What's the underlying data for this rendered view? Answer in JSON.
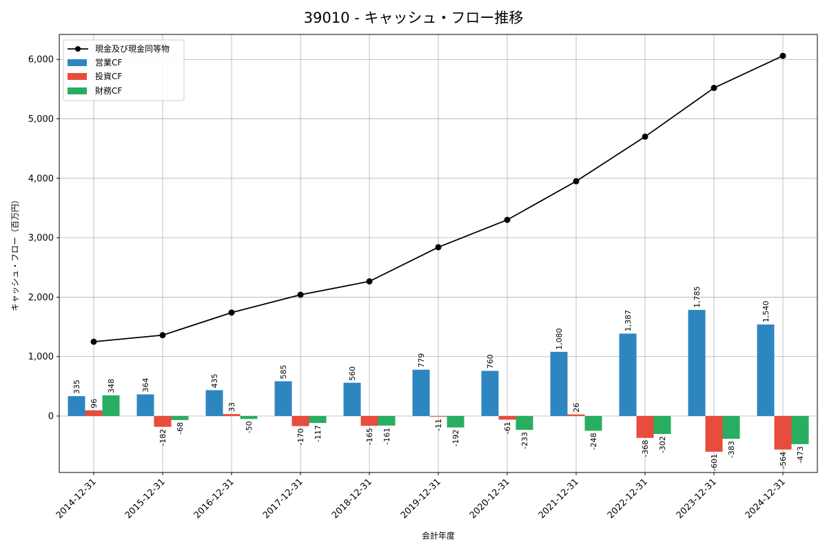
{
  "chart_data": {
    "type": "bar",
    "title": "39010 - キャッシュ・フロー推移",
    "xlabel": "会計年度",
    "ylabel": "キャッシュ・フロー（百万円）",
    "ylim": [
      -950,
      6420
    ],
    "yticks": [
      0,
      1000,
      2000,
      3000,
      4000,
      5000,
      6000
    ],
    "ytick_labels": [
      "0",
      "1,000",
      "2,000",
      "3,000",
      "4,000",
      "5,000",
      "6,000"
    ],
    "grid": true,
    "legend_position": "top-left",
    "categories": [
      "2014-12-31",
      "2015-12-31",
      "2016-12-31",
      "2017-12-31",
      "2018-12-31",
      "2019-12-31",
      "2020-12-31",
      "2021-12-31",
      "2022-12-31",
      "2023-12-31",
      "2024-12-31"
    ],
    "series": [
      {
        "name": "営業CF",
        "kind": "bar",
        "color": "#2e86c1",
        "values": [
          335,
          364,
          435,
          585,
          560,
          779,
          760,
          1080,
          1387,
          1785,
          1540
        ],
        "labels": [
          "335",
          "364",
          "435",
          "585",
          "560",
          "779",
          "760",
          "1,080",
          "1,387",
          "1,785",
          "1,540"
        ]
      },
      {
        "name": "投資CF",
        "kind": "bar",
        "color": "#e74c3c",
        "values": [
          96,
          -182,
          33,
          -170,
          -165,
          -11,
          -61,
          26,
          -368,
          -601,
          -564
        ],
        "labels": [
          "96",
          "-182",
          "33",
          "-170",
          "-165",
          "-11",
          "-61",
          "26",
          "-368",
          "-601",
          "-564"
        ]
      },
      {
        "name": "財務CF",
        "kind": "bar",
        "color": "#27ae60",
        "values": [
          348,
          -68,
          -50,
          -117,
          -161,
          -192,
          -233,
          -248,
          -302,
          -383,
          -473
        ],
        "labels": [
          "348",
          "-68",
          "-50",
          "-117",
          "-161",
          "-192",
          "-233",
          "-248",
          "-302",
          "-383",
          "-473"
        ]
      },
      {
        "name": "現金及び現金同等物",
        "kind": "line",
        "color": "#000000",
        "values": [
          1250,
          1360,
          1740,
          2040,
          2265,
          2840,
          3300,
          3950,
          4700,
          5520,
          6060
        ]
      }
    ]
  }
}
